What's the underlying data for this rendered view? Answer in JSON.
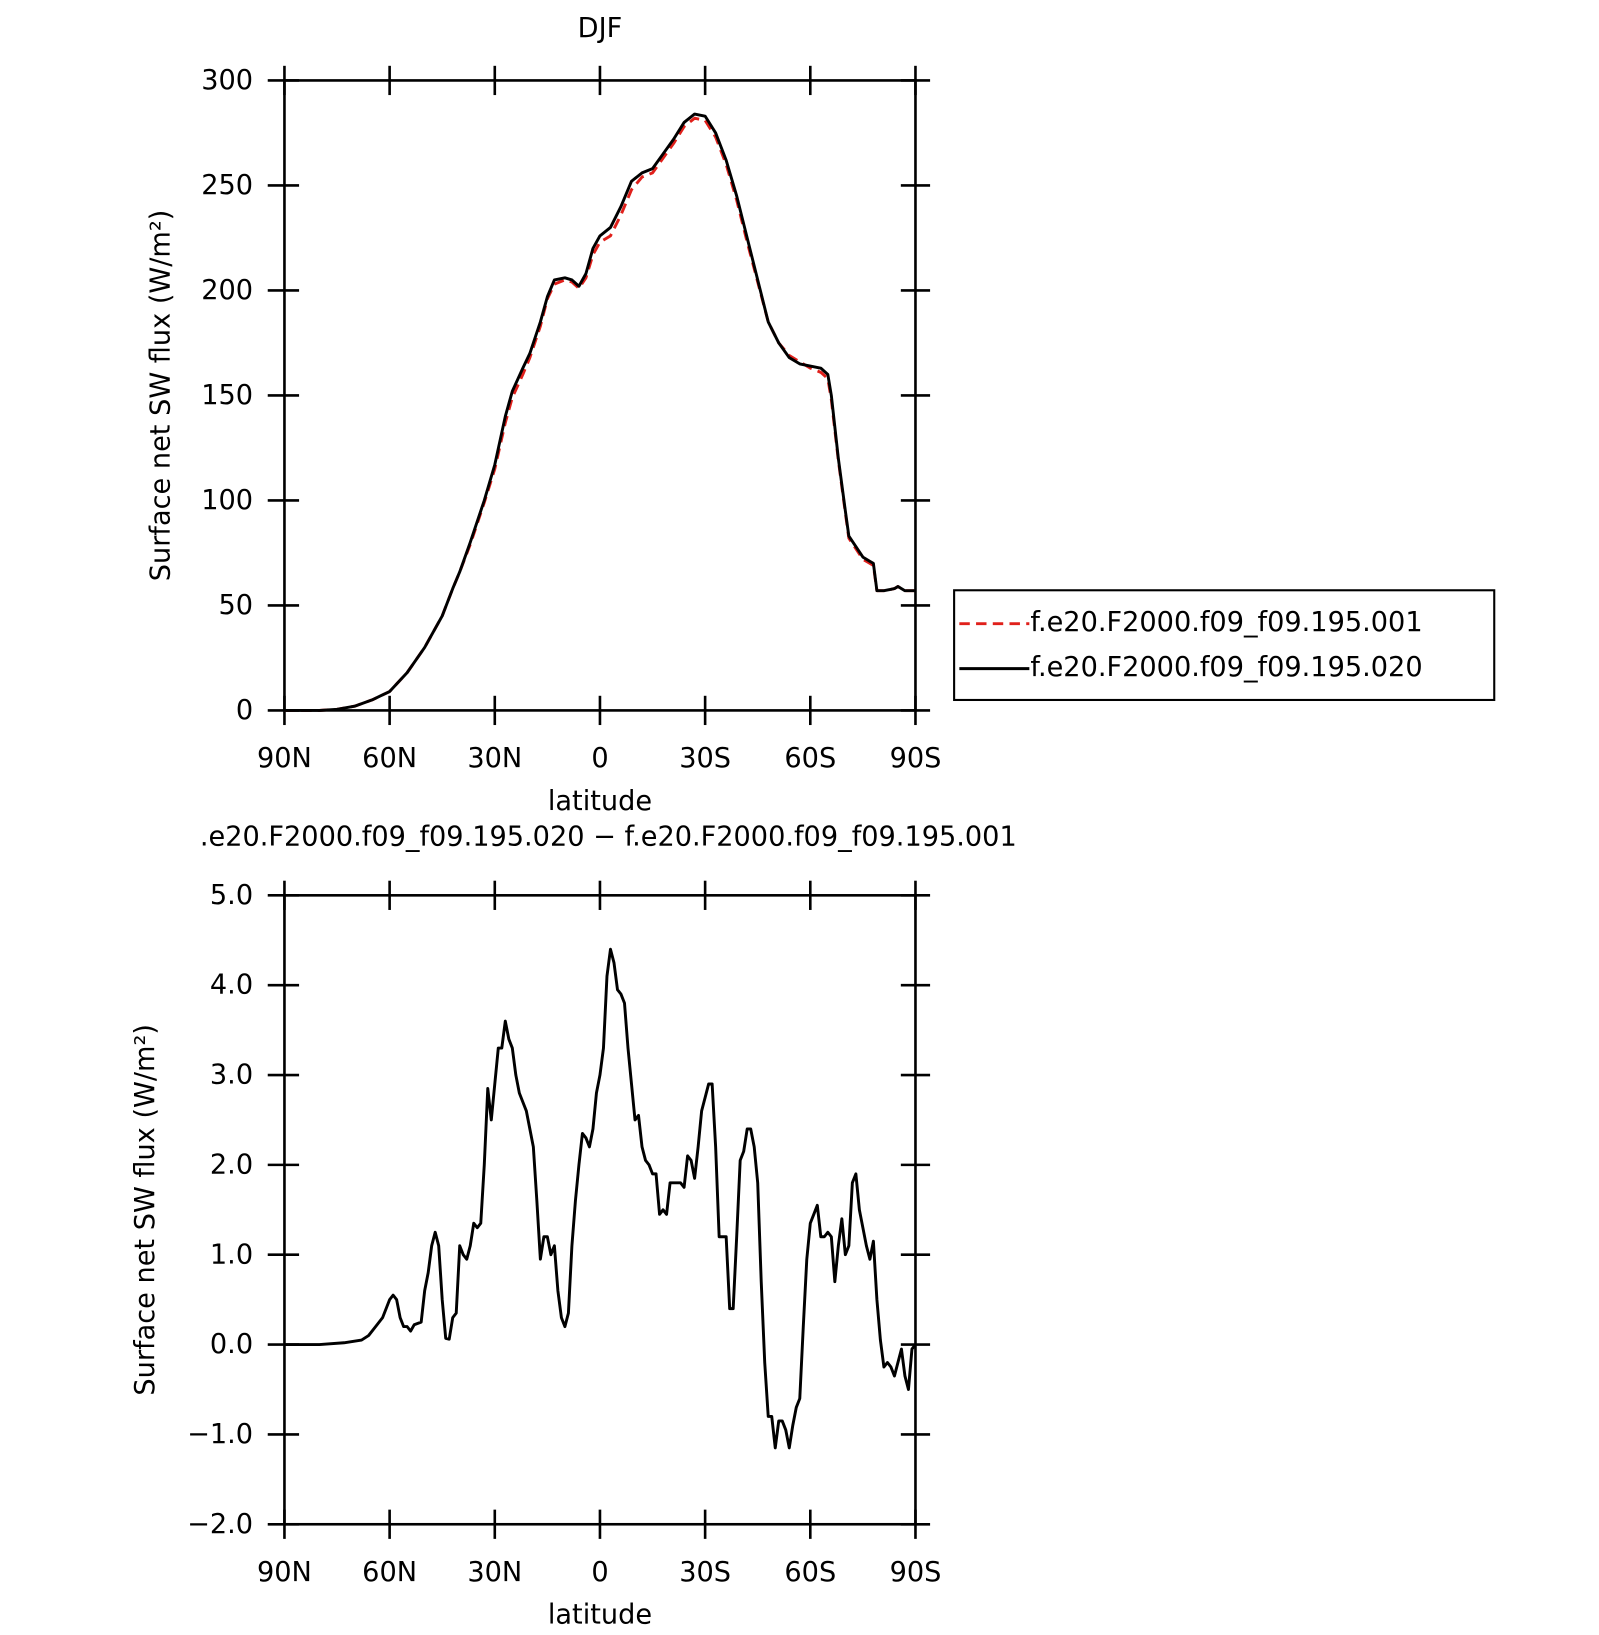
{
  "chart_data": [
    {
      "type": "line",
      "title": "DJF",
      "xlabel": "latitude",
      "ylabel": "Surface net SW flux (W/m²)",
      "xlim": [
        90,
        -90
      ],
      "xticks": [
        {
          "value": 90,
          "label": "90N"
        },
        {
          "value": 60,
          "label": "60N"
        },
        {
          "value": 30,
          "label": "30N"
        },
        0,
        {
          "value": -30,
          "label": "30S"
        },
        {
          "value": -60,
          "label": "60S"
        },
        {
          "value": -90,
          "label": "90S"
        }
      ],
      "ylim": [
        0,
        300
      ],
      "yticks": [
        0,
        50,
        100,
        150,
        200,
        250,
        300
      ],
      "legend": "right",
      "x": [
        90,
        80,
        75,
        70,
        65,
        60,
        55,
        50,
        45,
        42,
        40,
        37,
        33,
        30,
        27,
        25,
        22,
        20,
        17,
        15,
        13,
        10,
        8,
        6,
        4,
        2,
        0,
        -3,
        -6,
        -9,
        -12,
        -15,
        -18,
        -21,
        -24,
        -27,
        -30,
        -33,
        -36,
        -39,
        -42,
        -45,
        -48,
        -51,
        -54,
        -57,
        -60,
        -63,
        -65,
        -66,
        -68,
        -70,
        -71,
        -73,
        -75,
        -77,
        -78,
        -79,
        -81,
        -84,
        -85,
        -87,
        -90
      ],
      "series": [
        {
          "name": "f.e20.F2000.f09_f09.195.001",
          "color": "#e0201b",
          "dash": true,
          "values": [
            0,
            0,
            0.5,
            2,
            5,
            9,
            18,
            30,
            45,
            58,
            66,
            79,
            99,
            115,
            137,
            149,
            160,
            168,
            183,
            196,
            203,
            205,
            204,
            201,
            206,
            217,
            223,
            226,
            236,
            248,
            254,
            256,
            263,
            270,
            278,
            282,
            281,
            273,
            260,
            243,
            223,
            204,
            185,
            175,
            169,
            166,
            163,
            161,
            158,
            148,
            119,
            94,
            82,
            77,
            72,
            70,
            69,
            57,
            57,
            58,
            59,
            57,
            57
          ]
        },
        {
          "name": "f.e20.F2000.f09_f09.195.020",
          "color": "#000000",
          "dash": false,
          "values": [
            0,
            0,
            0.5,
            2,
            5,
            9,
            18,
            30,
            45,
            58,
            66,
            80,
            100,
            117,
            140,
            152,
            163,
            170,
            185,
            197,
            205,
            206,
            205,
            202,
            208,
            220,
            226,
            230,
            240,
            252,
            256,
            258,
            265,
            272,
            280,
            284,
            283,
            275,
            262,
            245,
            225,
            205,
            185,
            175,
            168,
            165,
            164,
            163,
            160,
            150,
            120,
            95,
            83,
            78,
            73,
            71,
            70,
            57,
            57,
            58,
            59,
            57,
            57
          ]
        }
      ]
    },
    {
      "type": "line",
      "title": ".e20.F2000.f09_f09.195.020 − f.e20.F2000.f09_f09.195.001",
      "xlabel": "latitude",
      "ylabel": "Surface net SW flux (W/m²)",
      "xlim": [
        90,
        -90
      ],
      "xticks": [
        {
          "value": 90,
          "label": "90N"
        },
        {
          "value": 60,
          "label": "60N"
        },
        {
          "value": 30,
          "label": "30N"
        },
        0,
        {
          "value": -30,
          "label": "30S"
        },
        {
          "value": -60,
          "label": "60S"
        },
        {
          "value": -90,
          "label": "90S"
        }
      ],
      "ylim": [
        -2,
        5
      ],
      "yticks": [
        {
          "value": -2,
          "label": "−2.0"
        },
        {
          "value": -1,
          "label": "−1.0"
        },
        {
          "value": 0,
          "label": "0.0"
        },
        {
          "value": 1,
          "label": "1.0"
        },
        {
          "value": 2,
          "label": "2.0"
        },
        {
          "value": 3,
          "label": "3.0"
        },
        {
          "value": 4,
          "label": "4.0"
        },
        {
          "value": 5,
          "label": "5.0"
        }
      ],
      "x": [
        90,
        80,
        73,
        68,
        66,
        64,
        62,
        60,
        59,
        58,
        57,
        56,
        55,
        54,
        53,
        51,
        50,
        49,
        48,
        47,
        46,
        45,
        44,
        43,
        42,
        41,
        40,
        39,
        38,
        37,
        36,
        35,
        34,
        33,
        32,
        31,
        30,
        29,
        28,
        27,
        26,
        25,
        24,
        23,
        22,
        21,
        20,
        19,
        18,
        17,
        16,
        15,
        14,
        13,
        12,
        11,
        10,
        9,
        8,
        7,
        6,
        5,
        4,
        3,
        2,
        1,
        0,
        -1,
        -2,
        -3,
        -4,
        -5,
        -6,
        -7,
        -8,
        -9,
        -10,
        -11,
        -12,
        -13,
        -14,
        -15,
        -16,
        -17,
        -18,
        -19,
        -20,
        -21,
        -22,
        -23,
        -24,
        -25,
        -26,
        -27,
        -28,
        -29,
        -30,
        -31,
        -32,
        -33,
        -34,
        -35,
        -36,
        -37,
        -38,
        -39,
        -40,
        -41,
        -42,
        -43,
        -44,
        -45,
        -46,
        -47,
        -48,
        -49,
        -50,
        -51,
        -52,
        -53,
        -54,
        -55,
        -56,
        -57,
        -58,
        -59,
        -60,
        -61,
        -62,
        -63,
        -64,
        -65,
        -66,
        -67,
        -68,
        -69,
        -70,
        -71,
        -72,
        -73,
        -74,
        -75,
        -76,
        -77,
        -78,
        -79,
        -80,
        -81,
        -82,
        -83,
        -84,
        -85,
        -86,
        -87,
        -88,
        -89,
        -90
      ],
      "series": [
        {
          "color": "#000000",
          "dash": false,
          "values": [
            0,
            0,
            0.02,
            0.05,
            0.1,
            0.2,
            0.3,
            0.5,
            0.55,
            0.5,
            0.3,
            0.2,
            0.2,
            0.15,
            0.22,
            0.25,
            0.6,
            0.8,
            1.1,
            1.25,
            1.1,
            0.5,
            0.07,
            0.06,
            0.3,
            0.35,
            1.1,
            1.0,
            0.95,
            1.1,
            1.35,
            1.3,
            1.35,
            2.0,
            2.85,
            2.5,
            2.9,
            3.3,
            3.3,
            3.6,
            3.4,
            3.3,
            3.0,
            2.8,
            2.7,
            2.6,
            2.4,
            2.2,
            1.6,
            0.95,
            1.2,
            1.2,
            1.0,
            1.1,
            0.6,
            0.3,
            0.2,
            0.35,
            1.1,
            1.6,
            2.0,
            2.35,
            2.3,
            2.2,
            2.4,
            2.8,
            3.0,
            3.3,
            4.1,
            4.4,
            4.25,
            3.95,
            3.9,
            3.8,
            3.3,
            2.9,
            2.5,
            2.55,
            2.2,
            2.05,
            2.0,
            1.9,
            1.9,
            1.45,
            1.5,
            1.45,
            1.8,
            1.8,
            1.8,
            1.8,
            1.75,
            2.1,
            2.05,
            1.85,
            2.2,
            2.6,
            2.75,
            2.9,
            2.9,
            2.2,
            1.2,
            1.2,
            1.2,
            0.4,
            0.4,
            1.2,
            2.05,
            2.15,
            2.4,
            2.4,
            2.2,
            1.8,
            0.7,
            -0.2,
            -0.8,
            -0.8,
            -1.15,
            -0.85,
            -0.85,
            -0.95,
            -1.15,
            -0.9,
            -0.7,
            -0.6,
            0.2,
            0.95,
            1.35,
            1.45,
            1.55,
            1.2,
            1.2,
            1.25,
            1.2,
            0.7,
            1.1,
            1.4,
            1.0,
            1.1,
            1.8,
            1.9,
            1.5,
            1.3,
            1.1,
            0.95,
            1.15,
            0.5,
            0.05,
            -0.25,
            -0.2,
            -0.25,
            -0.35,
            -0.2,
            -0.05,
            -0.35,
            -0.5,
            -0.05,
            0
          ]
        }
      ]
    }
  ]
}
